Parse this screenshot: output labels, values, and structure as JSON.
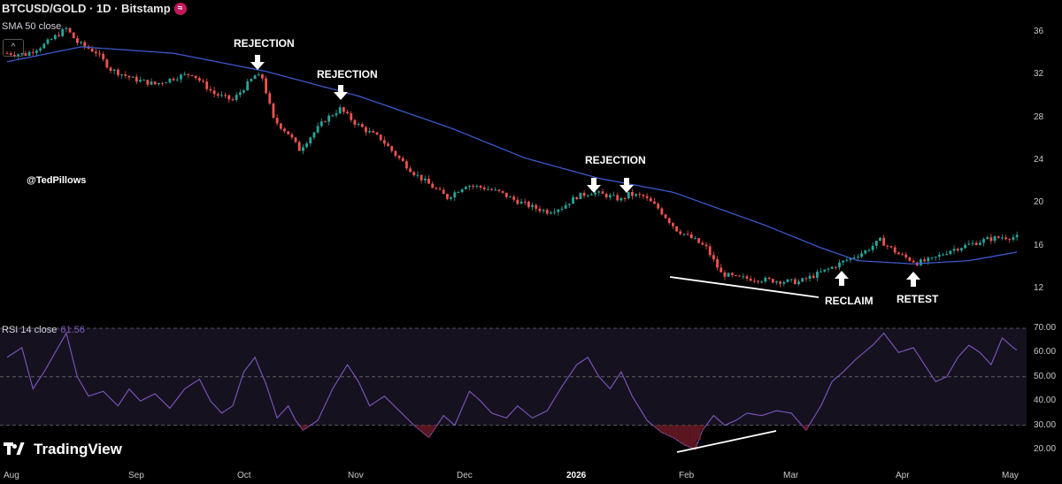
{
  "header": {
    "symbol_line": "BTCUSD/GOLD · 1D · Bitstamp",
    "indicator_sma": "SMA 50 close",
    "handle": "@TedPillows",
    "rsi_label": "RSI 14 close",
    "rsi_value": "61.56",
    "brand": "TradingView",
    "wave_icon": "≈",
    "collapse_icon": "^"
  },
  "chart_data": [
    {
      "type": "candlestick",
      "title": "BTCUSD/GOLD · 1D · Bitstamp",
      "ylim": [
        10.5,
        37.5
      ],
      "yticks": [
        12,
        16,
        20,
        24,
        28,
        32,
        36
      ],
      "x_ticks": [
        "Aug",
        "Sep",
        "Oct",
        "Nov",
        "Dec",
        "2026",
        "Feb",
        "Mar",
        "Apr",
        "May"
      ],
      "series": [
        {
          "name": "SMA 50 close",
          "anchors_day_value": [
            [
              0,
              33.2
            ],
            [
              20,
              34.6
            ],
            [
              45,
              34.0
            ],
            [
              70,
              32.3
            ],
            [
              95,
              30.0
            ],
            [
              120,
              27.0
            ],
            [
              140,
              24.2
            ],
            [
              160,
              22.3
            ],
            [
              180,
              21.0
            ],
            [
              205,
              17.9
            ],
            [
              220,
              15.8
            ],
            [
              230,
              14.6
            ],
            [
              245,
              14.3
            ],
            [
              260,
              14.6
            ],
            [
              273,
              15.4
            ]
          ]
        },
        {
          "name": "price",
          "anchors_day_value": [
            [
              0,
              34.0
            ],
            [
              5,
              33.9
            ],
            [
              10,
              34.8
            ],
            [
              16,
              36.3
            ],
            [
              19,
              35.0
            ],
            [
              24,
              34.1
            ],
            [
              28,
              32.5
            ],
            [
              34,
              31.6
            ],
            [
              40,
              31.1
            ],
            [
              46,
              31.8
            ],
            [
              50,
              32.1
            ],
            [
              56,
              30.2
            ],
            [
              61,
              29.6
            ],
            [
              67,
              31.9
            ],
            [
              69,
              31.7
            ],
            [
              72,
              27.8
            ],
            [
              76,
              26.5
            ],
            [
              79,
              25.0
            ],
            [
              82,
              26.2
            ],
            [
              86,
              27.8
            ],
            [
              90,
              28.8
            ],
            [
              94,
              27.5
            ],
            [
              97,
              26.8
            ],
            [
              101,
              26.0
            ],
            [
              105,
              24.5
            ],
            [
              110,
              22.8
            ],
            [
              115,
              21.5
            ],
            [
              119,
              20.5
            ],
            [
              124,
              21.7
            ],
            [
              129,
              21.4
            ],
            [
              133,
              21.0
            ],
            [
              137,
              20.3
            ],
            [
              142,
              19.6
            ],
            [
              146,
              19.2
            ],
            [
              150,
              19.6
            ],
            [
              154,
              20.6
            ],
            [
              158,
              21.0
            ],
            [
              162,
              20.7
            ],
            [
              166,
              20.3
            ],
            [
              168,
              20.8
            ],
            [
              172,
              20.6
            ],
            [
              176,
              19.5
            ],
            [
              181,
              17.5
            ],
            [
              186,
              16.5
            ],
            [
              189,
              15.8
            ],
            [
              193,
              13.4
            ],
            [
              197,
              13.0
            ],
            [
              202,
              12.9
            ],
            [
              208,
              12.7
            ],
            [
              214,
              12.6
            ],
            [
              218,
              13.2
            ],
            [
              222,
              13.8
            ],
            [
              226,
              14.5
            ],
            [
              232,
              15.5
            ],
            [
              236,
              16.5
            ],
            [
              241,
              15.2
            ],
            [
              246,
              14.4
            ],
            [
              250,
              14.7
            ],
            [
              255,
              15.6
            ],
            [
              260,
              16.1
            ],
            [
              265,
              16.6
            ],
            [
              269,
              16.8
            ],
            [
              273,
              16.8
            ]
          ]
        }
      ]
    },
    {
      "type": "line",
      "title": "RSI 14 close",
      "ylim": [
        16,
        74
      ],
      "yticks": [
        20,
        30,
        40,
        50,
        60,
        70
      ],
      "ytick_labels": [
        "20.00",
        "30.00",
        "40.00",
        "50.00",
        "60.00",
        "70.00"
      ],
      "band": [
        30,
        70
      ],
      "midline": 50,
      "series": [
        {
          "name": "RSI 14 close",
          "anchors_day_value": [
            [
              0,
              58
            ],
            [
              4,
              62
            ],
            [
              7,
              45
            ],
            [
              10,
              52
            ],
            [
              13,
              60
            ],
            [
              16,
              68
            ],
            [
              19,
              50
            ],
            [
              22,
              42
            ],
            [
              26,
              44
            ],
            [
              30,
              38
            ],
            [
              33,
              45
            ],
            [
              36,
              40
            ],
            [
              40,
              43
            ],
            [
              44,
              37
            ],
            [
              48,
              45
            ],
            [
              52,
              49
            ],
            [
              55,
              40
            ],
            [
              58,
              35
            ],
            [
              61,
              38
            ],
            [
              64,
              52
            ],
            [
              67,
              58
            ],
            [
              70,
              47
            ],
            [
              73,
              33
            ],
            [
              76,
              38
            ],
            [
              78,
              32
            ],
            [
              80,
              28
            ],
            [
              84,
              32
            ],
            [
              88,
              45
            ],
            [
              92,
              55
            ],
            [
              95,
              48
            ],
            [
              98,
              38
            ],
            [
              102,
              42
            ],
            [
              106,
              36
            ],
            [
              110,
              30
            ],
            [
              114,
              25
            ],
            [
              118,
              34
            ],
            [
              121,
              30
            ],
            [
              125,
              44
            ],
            [
              128,
              40
            ],
            [
              131,
              35
            ],
            [
              135,
              33
            ],
            [
              138,
              38
            ],
            [
              142,
              33
            ],
            [
              146,
              36
            ],
            [
              150,
              46
            ],
            [
              154,
              55
            ],
            [
              157,
              58
            ],
            [
              160,
              50
            ],
            [
              163,
              45
            ],
            [
              166,
              52
            ],
            [
              169,
              42
            ],
            [
              173,
              32
            ],
            [
              177,
              27
            ],
            [
              180,
              25
            ],
            [
              183,
              22
            ],
            [
              186,
              20
            ],
            [
              188,
              28
            ],
            [
              191,
              34
            ],
            [
              194,
              30
            ],
            [
              197,
              32
            ],
            [
              200,
              35
            ],
            [
              204,
              34
            ],
            [
              208,
              36
            ],
            [
              212,
              35
            ],
            [
              216,
              28
            ],
            [
              220,
              38
            ],
            [
              223,
              48
            ],
            [
              226,
              52
            ],
            [
              230,
              58
            ],
            [
              234,
              63
            ],
            [
              237,
              68
            ],
            [
              241,
              60
            ],
            [
              245,
              62
            ],
            [
              248,
              55
            ],
            [
              251,
              48
            ],
            [
              254,
              50
            ],
            [
              257,
              58
            ],
            [
              260,
              63
            ],
            [
              263,
              60
            ],
            [
              266,
              55
            ],
            [
              269,
              66
            ],
            [
              272,
              62
            ],
            [
              273,
              61
            ]
          ]
        }
      ]
    }
  ],
  "annotations": {
    "rejection_1": "REJECTION",
    "rejection_2": "REJECTION",
    "rejection_3": "REJECTION",
    "reclaim": "RECLAIM",
    "retest": "RETEST"
  },
  "colors": {
    "up": "#26a69a",
    "down": "#ef5350",
    "sma": "#3f5fd7",
    "rsi": "#7e57c2",
    "background": "#000000"
  }
}
